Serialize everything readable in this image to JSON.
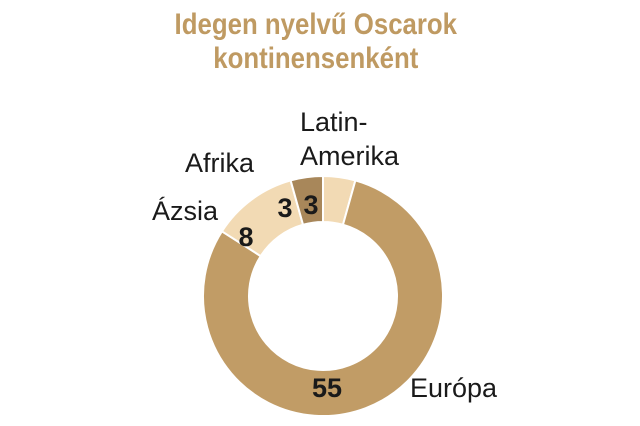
{
  "colors": {
    "title": "#bf9a62",
    "europe": "#c19c66",
    "asia": "#f2dab4",
    "africa": "#a8875a",
    "latin_america": "#f2dab4",
    "separator": "#ffffff",
    "text": "#1a1a1a"
  },
  "title": {
    "line1": "Idegen nyelvű Oscarok",
    "line2": "kontinensenként"
  },
  "chart_data": {
    "type": "pie",
    "variant": "donut",
    "title": "Idegen nyelvű Oscarok kontinensenként",
    "slices": [
      {
        "name": "Latin-Amerika",
        "label_lines": [
          "Latin-",
          "Amerika"
        ],
        "value": 3,
        "color": "#f2dab4"
      },
      {
        "name": "Európa",
        "label_lines": [
          "Európa"
        ],
        "value": 55,
        "color": "#c19c66"
      },
      {
        "name": "Ázsia",
        "label_lines": [
          "Ázsia"
        ],
        "value": 8,
        "color": "#f2dab4"
      },
      {
        "name": "Afrika",
        "label_lines": [
          "Afrika"
        ],
        "value": 3,
        "color": "#a8875a"
      }
    ],
    "start": "12 o'clock, clockwise",
    "legend": "none (labels beside slices)"
  }
}
